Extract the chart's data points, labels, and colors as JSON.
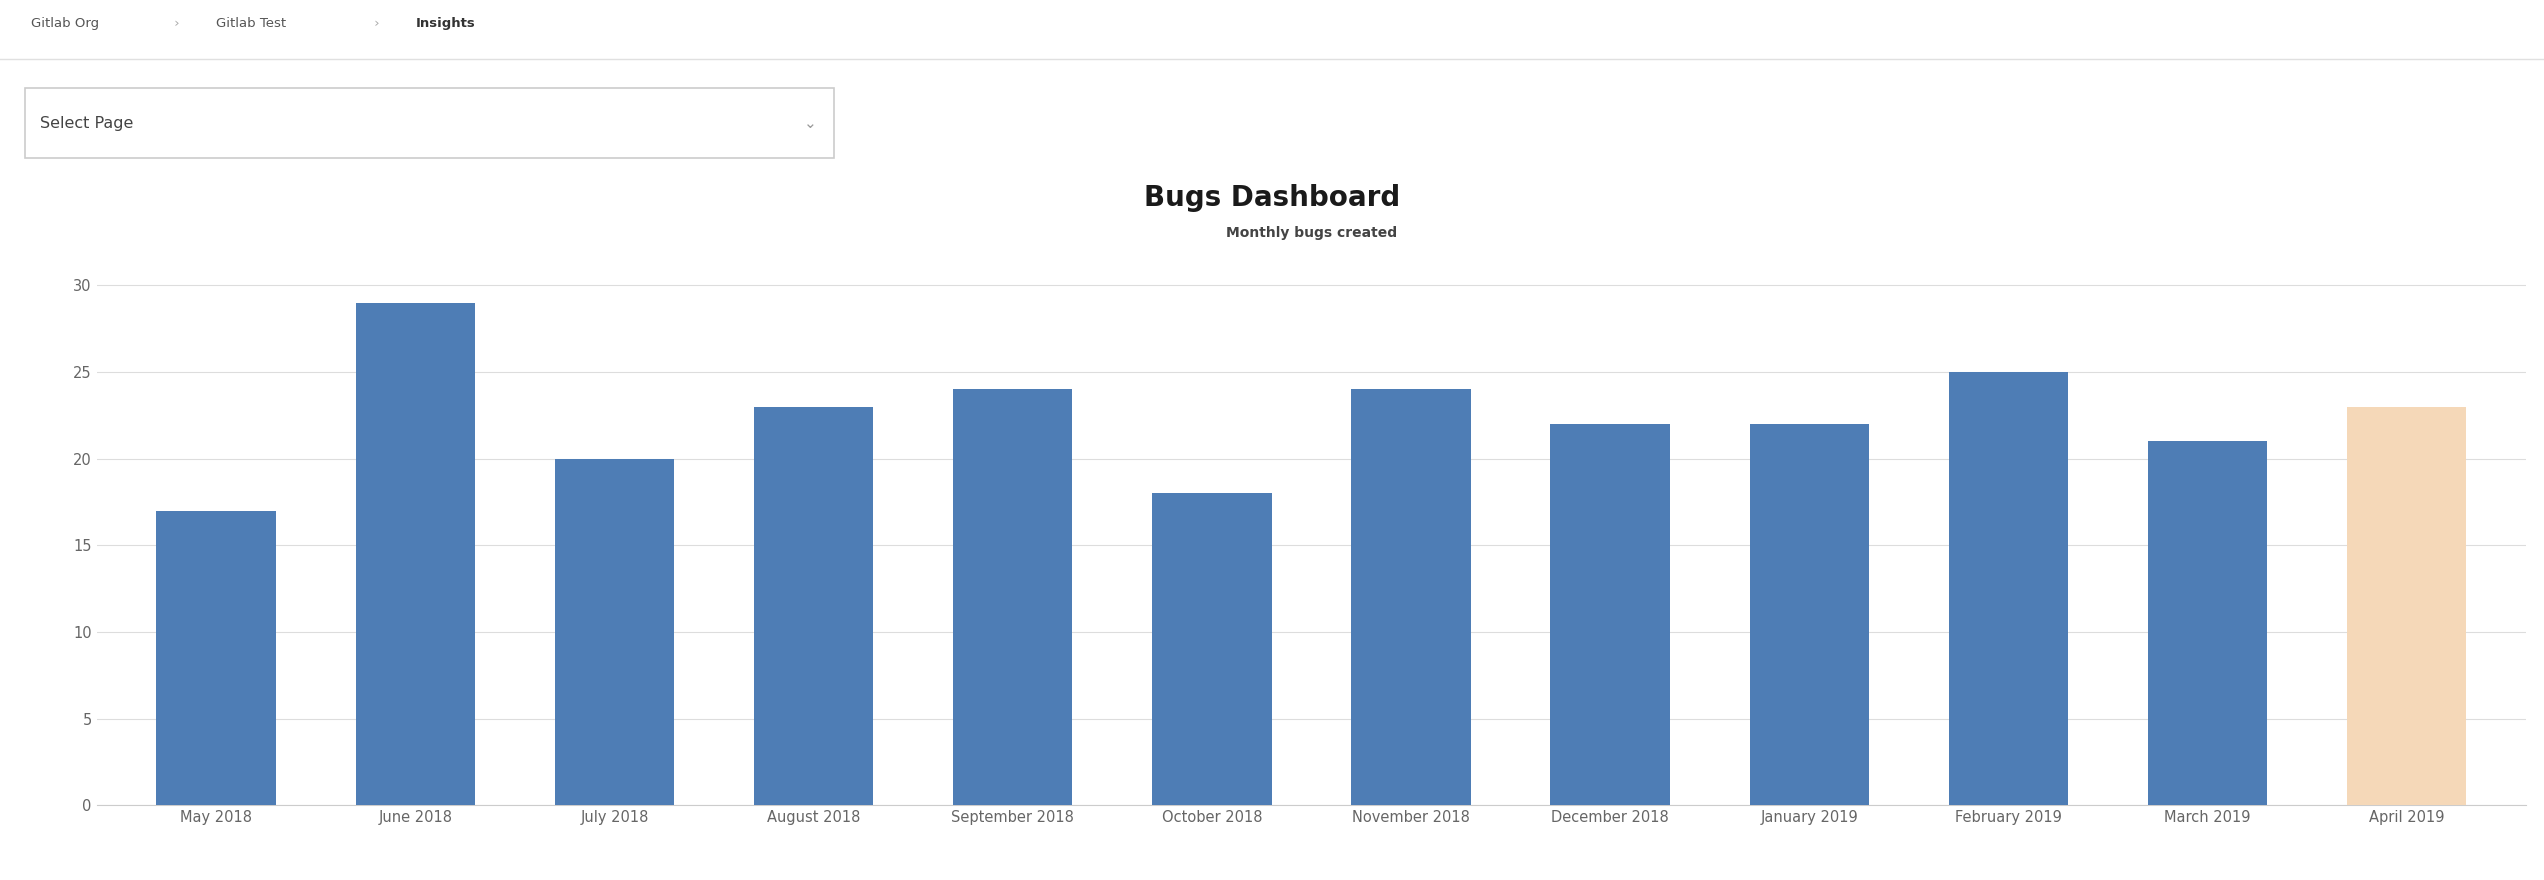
{
  "title": "Bugs Dashboard",
  "subtitle": "Monthly bugs created",
  "select_page_label": "Select Page",
  "categories": [
    "May 2018",
    "June 2018",
    "July 2018",
    "August 2018",
    "September 2018",
    "October 2018",
    "November 2018",
    "December 2018",
    "January 2019",
    "February 2019",
    "March 2019",
    "April 2019"
  ],
  "values": [
    17,
    29,
    20,
    23,
    24,
    18,
    24,
    22,
    22,
    25,
    21,
    23
  ],
  "bar_colors": [
    "#4e7db5",
    "#4e7db5",
    "#4e7db5",
    "#4e7db5",
    "#4e7db5",
    "#4e7db5",
    "#4e7db5",
    "#4e7db5",
    "#4e7db5",
    "#4e7db5",
    "#4e7db5",
    "#f5d8b8"
  ],
  "ylim": [
    0,
    32
  ],
  "yticks": [
    0,
    5,
    10,
    15,
    20,
    25,
    30
  ],
  "background_color": "#ffffff",
  "plot_bg_color": "#ffffff",
  "grid_color": "#dddddd",
  "title_fontsize": 20,
  "subtitle_fontsize": 10,
  "tick_label_color": "#666666",
  "bar_width": 0.6,
  "figsize": [
    25.44,
    8.8
  ],
  "dpi": 100,
  "breadcrumb_parts": [
    "Gitlab Org",
    " › ",
    "Gitlab Test",
    " › ",
    "Insights"
  ],
  "breadcrumb_bold": [
    false,
    false,
    false,
    false,
    true
  ],
  "breadcrumb_color": [
    "#555555",
    "#aaaaaa",
    "#555555",
    "#aaaaaa",
    "#333333"
  ]
}
